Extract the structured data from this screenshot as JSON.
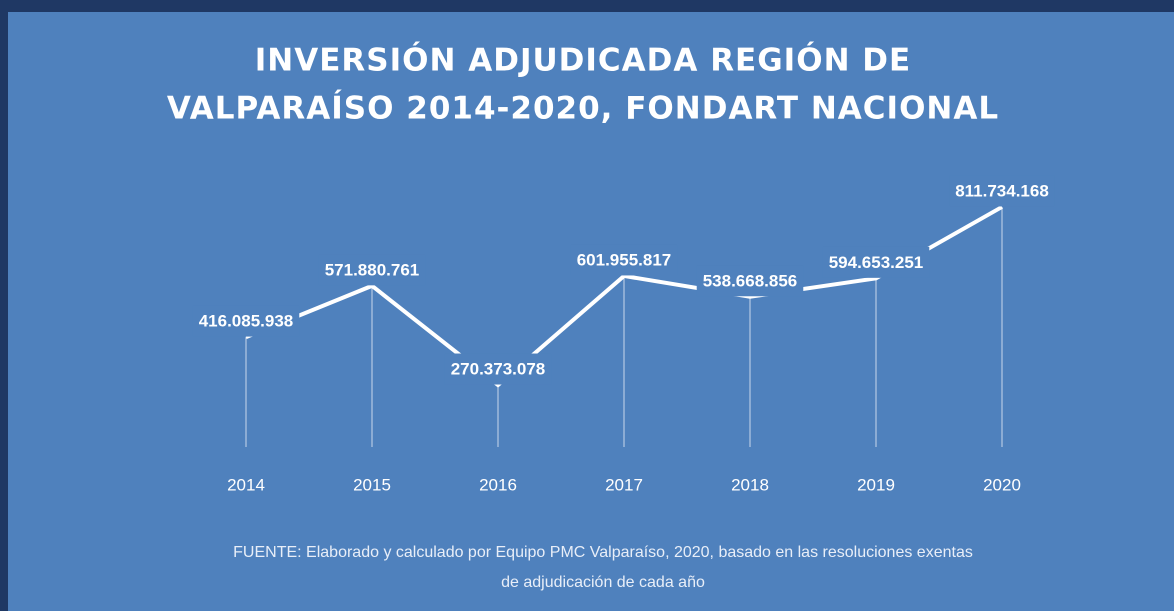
{
  "chart_data": {
    "type": "line",
    "title": [
      "INVERSIÓN  ADJUDICADA  REGIÓN  DE",
      "VALPARAÍSO  2014-2020,  FONDART  NACIONAL"
    ],
    "categories": [
      "2014",
      "2015",
      "2016",
      "2017",
      "2018",
      "2019",
      "2020"
    ],
    "values": [
      416085938,
      571880761,
      270373078,
      601955817,
      538668856,
      594653251,
      811734168
    ],
    "value_labels": [
      "416.085.938",
      "571.880.761",
      "270.373.078",
      "601.955.817",
      "538.668.856",
      "594.653.251",
      "811.734.168"
    ],
    "color": "#ffffff",
    "source": [
      "FUENTE: Elaborado y calculado por Equipo PMC Valparaíso, 2020, basado en las resoluciones exentas",
      "de adjudicación de cada año"
    ]
  }
}
